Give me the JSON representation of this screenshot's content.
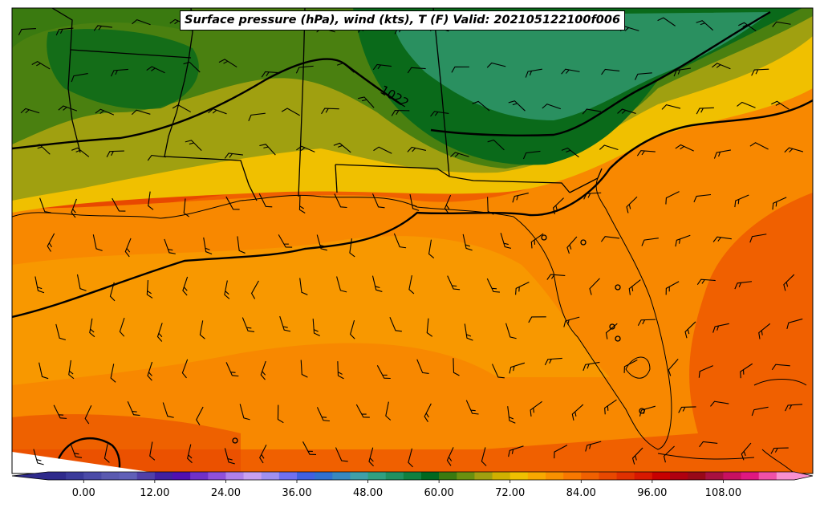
{
  "title": "Surface pressure (hPa), wind (kts), T (F) Valid: 202105122100f006",
  "isobar_label": "1022",
  "colorbar": {
    "min": -6,
    "max": 120,
    "ticks": [
      "0.00",
      "12.00",
      "24.00",
      "36.00",
      "48.00",
      "60.00",
      "72.00",
      "84.00",
      "96.00",
      "108.00"
    ],
    "tick_values": [
      0,
      12,
      24,
      36,
      48,
      60,
      72,
      84,
      96,
      108
    ],
    "colors": [
      "#2e2a8c",
      "#3a3a9a",
      "#4b4ba8",
      "#5a5ab0",
      "#6060b8",
      "#5040a8",
      "#4020a0",
      "#5010b0",
      "#7030c8",
      "#9050d8",
      "#b080e8",
      "#c8a0f0",
      "#a090f0",
      "#7070f0",
      "#4060e0",
      "#3070d0",
      "#3888c0",
      "#40a0a8",
      "#30a080",
      "#209060",
      "#108040",
      "#006820",
      "#3a7a10",
      "#6a9010",
      "#a0a010",
      "#d0b000",
      "#f0c000",
      "#f8a800",
      "#f89000",
      "#f87800",
      "#f06000",
      "#e84800",
      "#e03000",
      "#d81800",
      "#c80000",
      "#b00010",
      "#980818",
      "#a81040",
      "#c81060",
      "#e01880",
      "#f050a8",
      "#f890d0"
    ]
  },
  "regions": {
    "green_fill": "#4a8010",
    "dark_green": "#0a6a1a",
    "teal_green": "#2a9060",
    "olive": "#a0a010",
    "yellow": "#f0c000",
    "light_orange": "#f8a000",
    "orange": "#f88800",
    "dark_orange": "#f06000",
    "red_orange": "#e84800"
  }
}
